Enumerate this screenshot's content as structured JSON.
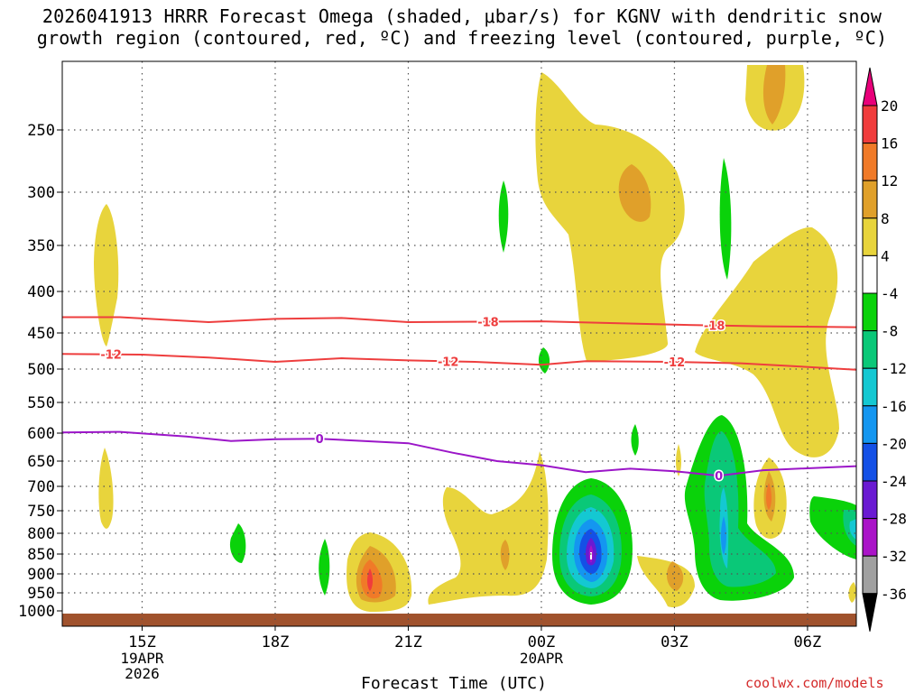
{
  "chart_data": {
    "type": "contour",
    "title_line1": "2026041913 HRRR Forecast Omega (shaded, μbar/s) for KGNV with dendritic snow",
    "title_line2": "growth region (contoured, red, ºC) and freezing level (contoured, purple, ºC)",
    "xlabel": "Forecast Time (UTC)",
    "credit": "coolwx.com/models",
    "x_range_hours": [
      13.2,
      31.1
    ],
    "x_ticks": [
      {
        "hour": 15,
        "label": "15Z",
        "sub1": "19APR",
        "sub2": "2026"
      },
      {
        "hour": 18,
        "label": "18Z",
        "sub1": "",
        "sub2": ""
      },
      {
        "hour": 21,
        "label": "21Z",
        "sub1": "",
        "sub2": ""
      },
      {
        "hour": 24,
        "label": "00Z",
        "sub1": "20APR",
        "sub2": ""
      },
      {
        "hour": 27,
        "label": "03Z",
        "sub1": "",
        "sub2": ""
      },
      {
        "hour": 30,
        "label": "06Z",
        "sub1": "",
        "sub2": ""
      }
    ],
    "y_ticks": [
      250,
      300,
      350,
      400,
      450,
      500,
      550,
      600,
      650,
      700,
      750,
      800,
      850,
      900,
      950,
      1000
    ],
    "colorbar": {
      "labels": [
        "20",
        "16",
        "12",
        "8",
        "4",
        "-4",
        "-8",
        "-12",
        "-16",
        "-20",
        "-24",
        "-28",
        "-32",
        "-36"
      ],
      "colors": [
        "#e8007a",
        "#f03c3c",
        "#f07a28",
        "#e0a02a",
        "#e8d43c",
        "#ffffff",
        "#0ad20a",
        "#0ac878",
        "#14c8d2",
        "#1496f0",
        "#1450e6",
        "#6a1ad2",
        "#aa14c8",
        "#a0a0a0",
        "#000000"
      ]
    },
    "contours": [
      {
        "name": "dgz-minus-18",
        "value": -18,
        "label": "-18",
        "color": "#ee3e3e",
        "points": [
          [
            13.2,
            431
          ],
          [
            14.5,
            431
          ],
          [
            16.5,
            437
          ],
          [
            18,
            433
          ],
          [
            19.5,
            432
          ],
          [
            21,
            437
          ],
          [
            24,
            436
          ],
          [
            27,
            440
          ],
          [
            29,
            442
          ],
          [
            31.1,
            443
          ]
        ],
        "label_hours": [
          22.8,
          27.9
        ]
      },
      {
        "name": "dgz-minus-12",
        "value": -12,
        "label": "-12",
        "color": "#ee3e3e",
        "points": [
          [
            13.2,
            479
          ],
          [
            15,
            480
          ],
          [
            16.5,
            484
          ],
          [
            18,
            490
          ],
          [
            19.5,
            485
          ],
          [
            21,
            488
          ],
          [
            22.5,
            490
          ],
          [
            24,
            494
          ],
          [
            25,
            489
          ],
          [
            27,
            490
          ],
          [
            28.5,
            492
          ],
          [
            31.1,
            501
          ]
        ],
        "label_hours": [
          14.3,
          21.9,
          27.0
        ]
      },
      {
        "name": "freezing-level",
        "value": 0,
        "label": "0",
        "color": "#9b16c8",
        "points": [
          [
            13.2,
            599
          ],
          [
            14.5,
            598
          ],
          [
            16,
            606
          ],
          [
            17,
            614
          ],
          [
            18,
            611
          ],
          [
            19,
            610
          ],
          [
            21,
            618
          ],
          [
            22,
            635
          ],
          [
            23,
            650
          ],
          [
            24,
            658
          ],
          [
            25,
            672
          ],
          [
            26,
            665
          ],
          [
            27,
            670
          ],
          [
            28,
            679
          ],
          [
            29,
            668
          ],
          [
            31.1,
            660
          ]
        ],
        "label_hours": [
          19.0,
          28.0
        ]
      }
    ]
  }
}
